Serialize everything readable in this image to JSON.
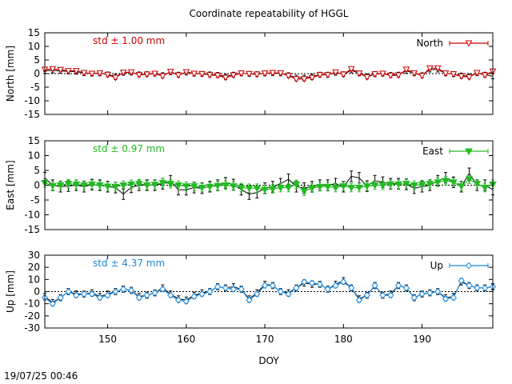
{
  "title": "Coordinate repeatability of HGGL",
  "timestamp": "19/07/25 00:46",
  "xlabel": "DOY",
  "chart_data": [
    {
      "type": "line",
      "panel": "north",
      "ylabel": "North [mm]",
      "legend": "North",
      "std_label": "std ± 1.00 mm",
      "color": "#cc0000",
      "marker": "triangle-down-open",
      "xlim": [
        142,
        199
      ],
      "ylim": [
        -15,
        15
      ],
      "yticks": [
        15,
        10,
        5,
        0,
        -5,
        -10,
        -15
      ],
      "x": [
        142,
        143,
        144,
        145,
        146,
        147,
        148,
        149,
        150,
        151,
        152,
        153,
        154,
        155,
        156,
        157,
        158,
        159,
        160,
        161,
        162,
        163,
        164,
        165,
        166,
        167,
        168,
        169,
        170,
        171,
        172,
        173,
        174,
        175,
        176,
        177,
        178,
        179,
        180,
        181,
        182,
        183,
        184,
        185,
        186,
        187,
        188,
        189,
        190,
        191,
        192,
        193,
        194,
        195,
        196,
        197,
        198,
        199
      ],
      "y": [
        1.5,
        1.7,
        1.4,
        1.0,
        1.0,
        0.3,
        0.0,
        0.2,
        -0.4,
        -1.5,
        0.4,
        0.5,
        -0.5,
        -0.3,
        0.0,
        -0.9,
        0.7,
        -0.6,
        0.6,
        0.0,
        -0.1,
        -0.5,
        -0.7,
        -1.5,
        -0.6,
        0.1,
        -0.1,
        -0.3,
        0.1,
        0.3,
        0.2,
        -0.8,
        -2.0,
        -2.0,
        -1.5,
        -0.5,
        -0.5,
        0.5,
        -0.3,
        1.7,
        0.1,
        -1.3,
        -0.2,
        0.0,
        -0.7,
        -0.6,
        1.5,
        0.2,
        -0.8,
        2.0,
        2.0,
        0.1,
        -0.2,
        -1.0,
        -1.3,
        0.3,
        -0.6,
        0.8
      ],
      "ref_y": [
        1.0,
        1.2,
        1.0,
        0.8,
        0.7,
        0.2,
        0.0,
        0.1,
        -0.3,
        -1.1,
        0.3,
        0.4,
        -0.3,
        -0.2,
        0.0,
        -0.6,
        0.5,
        -0.4,
        0.4,
        0.0,
        -0.1,
        -0.3,
        -0.5,
        -1.1,
        -0.4,
        0.1,
        -0.1,
        -0.2,
        0.1,
        0.2,
        0.1,
        -0.6,
        -1.5,
        -1.5,
        -1.1,
        -0.4,
        -0.4,
        0.3,
        -0.2,
        1.2,
        0.1,
        -1.0,
        -0.2,
        0.0,
        -0.5,
        -0.4,
        1.0,
        0.1,
        -0.6,
        1.5,
        1.5,
        0.1,
        -0.2,
        -0.7,
        -1.0,
        0.2,
        -0.4,
        -1.0
      ],
      "err": 0.9
    },
    {
      "type": "line",
      "panel": "east",
      "ylabel": "East [mm]",
      "legend": "East",
      "std_label": "std ± 0.97 mm",
      "color": "#22bb22",
      "marker": "triangle-down-filled",
      "xlim": [
        142,
        199
      ],
      "ylim": [
        -15,
        15
      ],
      "yticks": [
        15,
        10,
        5,
        0,
        -5,
        -10,
        -15
      ],
      "x": [
        142,
        143,
        144,
        145,
        146,
        147,
        148,
        149,
        150,
        151,
        152,
        153,
        154,
        155,
        156,
        157,
        158,
        159,
        160,
        161,
        162,
        163,
        164,
        165,
        166,
        167,
        168,
        169,
        170,
        171,
        172,
        173,
        174,
        175,
        176,
        177,
        178,
        179,
        180,
        181,
        182,
        183,
        184,
        185,
        186,
        187,
        188,
        189,
        190,
        191,
        192,
        193,
        194,
        195,
        196,
        197,
        198,
        199
      ],
      "y": [
        0.8,
        -0.2,
        0.0,
        0.5,
        0.3,
        0.0,
        0.3,
        0.0,
        -0.4,
        -0.5,
        0.0,
        0.3,
        0.5,
        0.0,
        0.2,
        0.8,
        0.5,
        0.0,
        -0.3,
        -0.3,
        -0.8,
        -0.5,
        -0.2,
        0.0,
        -0.3,
        -0.8,
        -1.0,
        -1.0,
        -1.5,
        -1.2,
        -0.8,
        -0.8,
        0.3,
        -2.0,
        -1.0,
        -0.5,
        -0.5,
        -0.8,
        -0.3,
        -0.8,
        -0.8,
        -0.3,
        0.0,
        0.0,
        0.3,
        0.3,
        0.5,
        0.0,
        0.2,
        0.5,
        1.0,
        1.5,
        1.0,
        -0.3,
        2.0,
        0.5,
        -0.8,
        0.3
      ],
      "ref_y": [
        2.5,
        0.0,
        -0.5,
        -0.3,
        0.0,
        -0.5,
        0.2,
        0.0,
        -0.5,
        -0.8,
        -3.0,
        -0.7,
        0.0,
        0.0,
        0.0,
        0.5,
        1.5,
        -1.5,
        -1.5,
        -0.8,
        -1.0,
        -0.5,
        0.0,
        0.8,
        0.2,
        -1.5,
        -3.0,
        -2.5,
        -1.0,
        -0.5,
        0.5,
        2.0,
        -0.5,
        -1.0,
        -0.5,
        0.0,
        0.0,
        0.5,
        -0.5,
        3.0,
        2.5,
        -0.3,
        1.5,
        1.0,
        0.5,
        0.5,
        0.3,
        -1.0,
        -0.5,
        0.0,
        1.5,
        2.5,
        1.0,
        -0.5,
        4.0,
        0.0,
        0.0,
        -1.5
      ],
      "err": 1.8
    },
    {
      "type": "line",
      "panel": "up",
      "ylabel": "Up [mm]",
      "legend": "Up",
      "std_label": "std ± 4.37 mm",
      "color": "#1f88d8",
      "marker": "diamond-open",
      "xlim": [
        142,
        199
      ],
      "ylim": [
        -30,
        30
      ],
      "yticks": [
        30,
        20,
        10,
        0,
        -10,
        -20,
        -30
      ],
      "x": [
        142,
        143,
        144,
        145,
        146,
        147,
        148,
        149,
        150,
        151,
        152,
        153,
        154,
        155,
        156,
        157,
        158,
        159,
        160,
        161,
        162,
        163,
        164,
        165,
        166,
        167,
        168,
        169,
        170,
        171,
        172,
        173,
        174,
        175,
        176,
        177,
        178,
        179,
        180,
        181,
        182,
        183,
        184,
        185,
        186,
        187,
        188,
        189,
        190,
        191,
        192,
        193,
        194,
        195,
        196,
        197,
        198,
        199
      ],
      "y": [
        -5,
        -10,
        -5,
        0,
        -3,
        -2,
        -2,
        -5,
        -3,
        0,
        2,
        1,
        -5,
        -3,
        -1,
        2,
        -3,
        -7,
        -8,
        -4,
        -2,
        0,
        4,
        3,
        2,
        2,
        -7,
        -2,
        5,
        5,
        0,
        -2,
        3,
        8,
        7,
        6,
        2,
        5,
        8,
        3,
        -7,
        -3,
        5,
        -3,
        -3,
        5,
        3,
        -5,
        -2,
        -1,
        0,
        -6,
        -5,
        9,
        5,
        3,
        3,
        4
      ],
      "ref_y": [
        -4,
        -9,
        -5,
        0,
        -2,
        -2,
        -1,
        -4,
        -2,
        0,
        2,
        1,
        -4,
        -3,
        -1,
        3,
        -2,
        -6,
        -7,
        -3,
        -1,
        0,
        4,
        3,
        4,
        2,
        -6,
        -1,
        6,
        5,
        0,
        -1,
        3,
        7,
        6,
        6,
        2,
        6,
        9,
        3,
        -6,
        -3,
        5,
        -3,
        -2,
        5,
        3,
        -5,
        -2,
        -1,
        0,
        -5,
        -4,
        8,
        5,
        3,
        3,
        4
      ],
      "err": 2.5
    }
  ],
  "xticks": [
    150,
    160,
    170,
    180,
    190
  ]
}
